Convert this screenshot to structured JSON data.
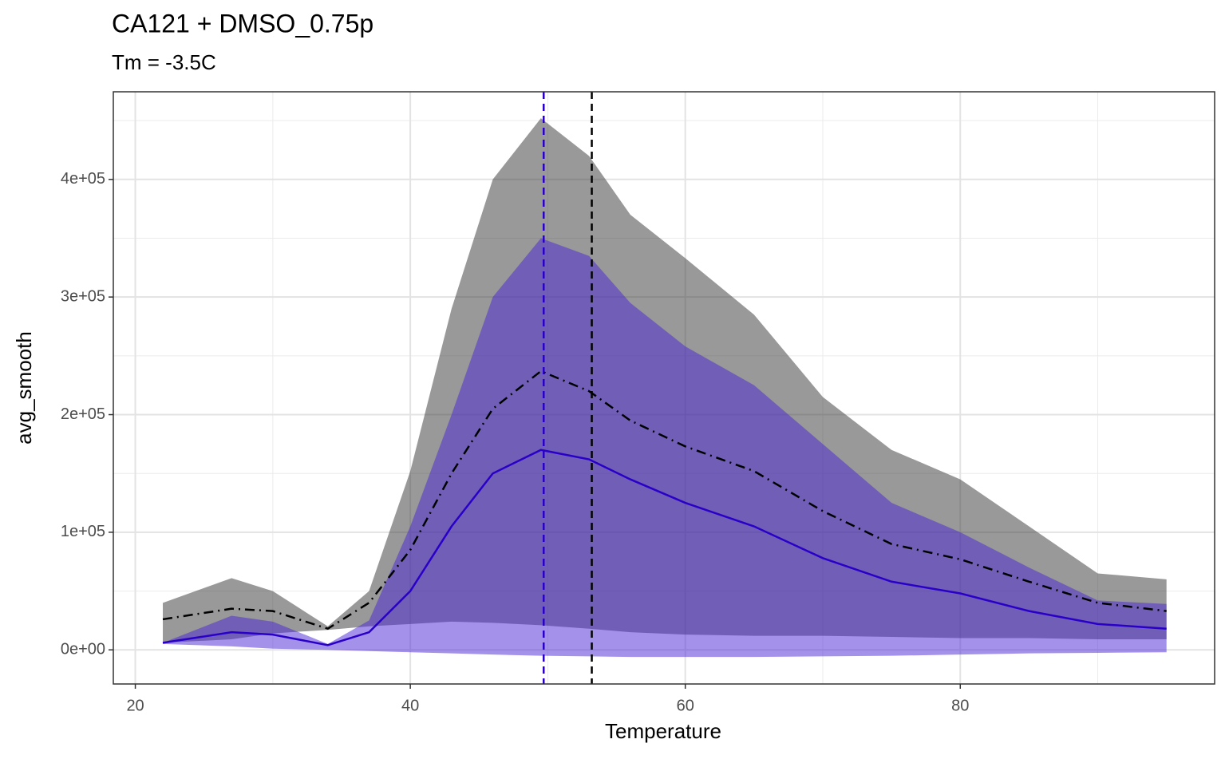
{
  "chart_data": {
    "type": "ribbon_line",
    "title": "CA121 + DMSO_0.75p",
    "subtitle": "Tm = -3.5C",
    "x_label": "Temperature",
    "y_label": "avg_smooth",
    "x": [
      22,
      27,
      30,
      34,
      37,
      40,
      43,
      46,
      49.5,
      53,
      56,
      60,
      65,
      70,
      75,
      80,
      85,
      90,
      95
    ],
    "series": [
      {
        "color": "#000000",
        "ribbon_color": "#333333",
        "line_style": "dashdot",
        "values": [
          26000,
          35000,
          33000,
          18000,
          40000,
          85000,
          150000,
          205000,
          237000,
          220000,
          195000,
          173000,
          152000,
          118000,
          90000,
          77000,
          58000,
          40000,
          33000
        ],
        "upper": [
          40000,
          61000,
          50000,
          20000,
          50000,
          152000,
          290000,
          400000,
          452000,
          420000,
          370000,
          333000,
          285000,
          215000,
          170000,
          145000,
          105000,
          65000,
          60000
        ],
        "lower": [
          6000,
          9000,
          14000,
          17000,
          20000,
          22000,
          24000,
          23000,
          21000,
          18000,
          15000,
          13000,
          12000,
          12000,
          11000,
          10000,
          10000,
          9000,
          9000
        ]
      },
      {
        "color": "#2a00c8",
        "ribbon_color": "#4a26d6",
        "line_style": "solid",
        "values": [
          6000,
          15000,
          13000,
          4000,
          15000,
          50000,
          105000,
          150000,
          170000,
          162000,
          145000,
          125000,
          105000,
          78000,
          58000,
          48000,
          33000,
          22000,
          18000
        ],
        "upper": [
          6000,
          29000,
          24000,
          5000,
          25000,
          105000,
          200000,
          300000,
          350000,
          335000,
          295000,
          258000,
          225000,
          175000,
          125000,
          100000,
          70000,
          42000,
          39000
        ],
        "lower": [
          5000,
          3000,
          1000,
          0,
          -1000,
          -2000,
          -3000,
          -4000,
          -5000,
          -5500,
          -6000,
          -6000,
          -6000,
          -5500,
          -5000,
          -4000,
          -3000,
          -2500,
          -2000
        ]
      }
    ],
    "vlines": [
      {
        "x": 49.7,
        "color": "#2a00c8"
      },
      {
        "x": 53.2,
        "color": "#000000"
      }
    ],
    "xlim": [
      18.4,
      98.5
    ],
    "ylim": [
      -29000,
      474500
    ],
    "xticks": [
      20,
      40,
      60,
      80
    ],
    "yticks": [
      {
        "value": 0,
        "label": "0e+00"
      },
      {
        "value": 100000,
        "label": "1e+05"
      },
      {
        "value": 200000,
        "label": "2e+05"
      },
      {
        "value": 300000,
        "label": "3e+05"
      },
      {
        "value": 400000,
        "label": "4e+05"
      }
    ],
    "x_minor_grid": [
      30,
      50,
      70,
      90
    ],
    "y_minor_grid": [
      50000,
      150000,
      250000,
      350000,
      450000
    ],
    "grid": true
  }
}
